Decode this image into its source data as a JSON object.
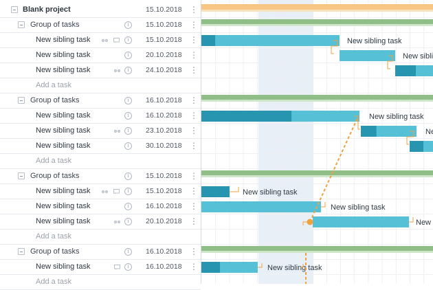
{
  "project": {
    "name": "Blank project",
    "date": "15.10.2018"
  },
  "add_task_label": "Add a task",
  "colors": {
    "project_bar": "#f7c683",
    "group_bar": "#8fbf86",
    "task_light": "#56c0d6",
    "task_dark": "#2795b0",
    "dependency": "#f0a23d",
    "weekend_shade": "#e9eff6"
  },
  "groups": [
    {
      "name": "Group of tasks",
      "date": "15.10.2018",
      "tasks": [
        {
          "name": "New sibling task",
          "date": "15.10.2018",
          "icons": [
            "link-icon",
            "comment-icon"
          ],
          "progress": 0.1
        },
        {
          "name": "New sibling task",
          "date": "20.10.2018",
          "icons": [],
          "progress": 0.0
        },
        {
          "name": "New sibling task",
          "date": "24.10.2018",
          "icons": [
            "link-icon"
          ],
          "progress": 0.5
        }
      ]
    },
    {
      "name": "Group of tasks",
      "date": "16.10.2018",
      "tasks": [
        {
          "name": "New sibling task",
          "date": "16.10.2018",
          "icons": [],
          "progress": 0.57
        },
        {
          "name": "New sibling task",
          "date": "23.10.2018",
          "icons": [
            "link-icon"
          ],
          "progress": 0.28
        },
        {
          "name": "New sibling task",
          "date": "30.10.2018",
          "icons": [],
          "progress": 0.5
        }
      ]
    },
    {
      "name": "Group of tasks",
      "date": "15.10.2018",
      "tasks": [
        {
          "name": "New sibling task",
          "date": "15.10.2018",
          "icons": [
            "link-icon",
            "comment-icon"
          ],
          "progress": 1.0
        },
        {
          "name": "New sibling task",
          "date": "16.10.2018",
          "icons": [],
          "progress": 0.0
        },
        {
          "name": "New sibling task",
          "date": "20.10.2018",
          "icons": [
            "link-icon"
          ],
          "progress": 0.0
        }
      ]
    },
    {
      "name": "Group of tasks",
      "date": "16.10.2018",
      "tasks": [
        {
          "name": "New sibling task",
          "date": "16.10.2018",
          "icons": [
            "comment-icon"
          ],
          "progress": 0.33
        }
      ]
    }
  ],
  "bar_label": "New sibling task"
}
